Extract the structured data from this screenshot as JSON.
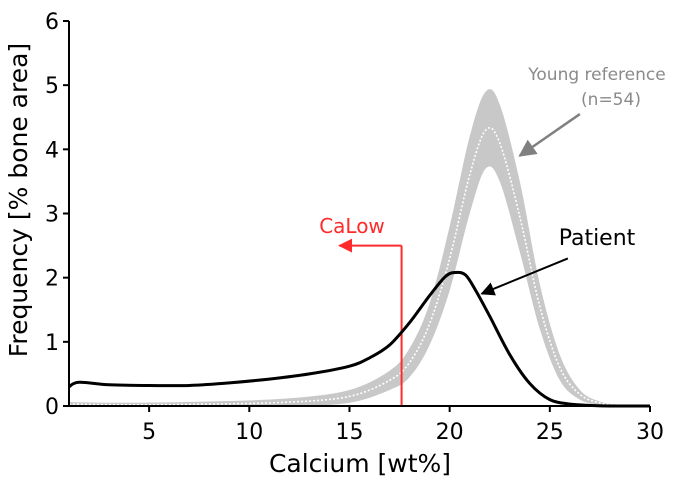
{
  "chart_data": {
    "type": "line",
    "xlabel": "Calcium [wt%]",
    "ylabel": "Frequency [% bone area]",
    "xlim": [
      1,
      30
    ],
    "ylim": [
      0,
      6
    ],
    "xticks": [
      5,
      10,
      15,
      20,
      25,
      30
    ],
    "yticks": [
      0,
      1,
      2,
      3,
      4,
      5,
      6
    ],
    "grid": false,
    "reference_band": {
      "x": [
        1,
        4,
        8,
        12,
        15,
        17,
        18,
        19,
        20,
        21,
        21.8,
        22.5,
        23.5,
        24.5,
        25.5,
        26.5,
        27.5,
        28.5,
        30
      ],
      "upper": [
        0.06,
        0.05,
        0.07,
        0.12,
        0.25,
        0.55,
        0.9,
        1.6,
        2.8,
        4.2,
        4.9,
        4.7,
        3.5,
        1.9,
        0.8,
        0.25,
        0.07,
        0.02,
        0
      ],
      "lower": [
        0,
        0,
        0,
        0,
        0.05,
        0.25,
        0.45,
        0.95,
        1.8,
        3.0,
        3.7,
        3.5,
        2.4,
        1.2,
        0.4,
        0.1,
        0.02,
        0,
        0
      ],
      "mean": [
        0.03,
        0.02,
        0.03,
        0.06,
        0.15,
        0.4,
        0.68,
        1.28,
        2.3,
        3.6,
        4.3,
        4.1,
        2.95,
        1.55,
        0.6,
        0.18,
        0.05,
        0.01,
        0
      ]
    },
    "series": [
      {
        "name": "Patient",
        "x": [
          1,
          1.5,
          3,
          5,
          7,
          9,
          11,
          13,
          15,
          16,
          17,
          18,
          19,
          19.8,
          20.3,
          20.8,
          21.3,
          22,
          23,
          24,
          25,
          26,
          27,
          28,
          30
        ],
        "y": [
          0.3,
          0.37,
          0.33,
          0.32,
          0.32,
          0.36,
          0.42,
          0.5,
          0.62,
          0.75,
          0.95,
          1.3,
          1.72,
          2.02,
          2.08,
          2.04,
          1.8,
          1.4,
          0.8,
          0.35,
          0.1,
          0.03,
          0.01,
          0,
          0
        ]
      }
    ],
    "annotations": [
      {
        "text": "Young reference",
        "x": 24.8,
        "y": 5.0
      },
      {
        "text": "(n=54)",
        "x": 24.8,
        "y": 4.62
      },
      {
        "text": "Patient",
        "x": 26.2,
        "y": 2.55
      },
      {
        "text": "CaLow",
        "x": 17.6,
        "y": 2.65
      }
    ],
    "calow_threshold": 17.6,
    "colors": {
      "patient": "#000000",
      "reference": "#c8c8c8",
      "reference_mean": "#ffffff",
      "calow": "#ff2a2a",
      "reference_label": "#8a8a8a",
      "arrow_gray": "#808080"
    }
  }
}
